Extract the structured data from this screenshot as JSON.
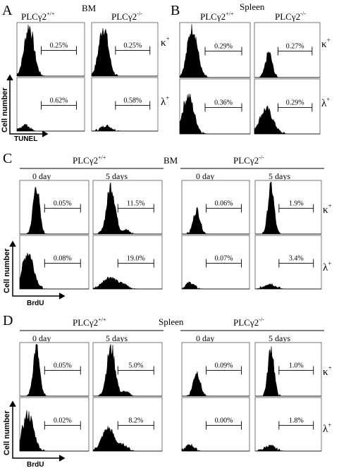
{
  "figure": {
    "A": {
      "letter": "A",
      "tissue": "BM",
      "genotypes": [
        "PLCγ2",
        "PLCγ2"
      ],
      "genotype_sup": [
        "+/+",
        "-/-"
      ],
      "rows": [
        {
          "chain": "κ",
          "chain_sup": "+",
          "gates": [
            "0.25%",
            "0.25%"
          ]
        },
        {
          "chain": "λ",
          "chain_sup": "+",
          "gates": [
            "0.62%",
            "0.58%"
          ]
        }
      ],
      "ylabel": "Cell number",
      "xlabel": "TUNEL"
    },
    "B": {
      "letter": "B",
      "tissue": "Spleen",
      "genotypes": [
        "PLCγ2",
        "PLCγ2"
      ],
      "genotype_sup": [
        "+/+",
        "-/-"
      ],
      "rows": [
        {
          "chain": "κ",
          "chain_sup": "+",
          "gates": [
            "0.29%",
            "0.27%"
          ]
        },
        {
          "chain": "λ",
          "chain_sup": "+",
          "gates": [
            "0.36%",
            "0.29%"
          ]
        }
      ]
    },
    "C": {
      "letter": "C",
      "tissue": "BM",
      "genotypes": [
        "PLCγ2",
        "PLCγ2"
      ],
      "genotype_sup": [
        "+/+",
        "-/-"
      ],
      "days": [
        "0 day",
        "5 days",
        "0 day",
        "5 days"
      ],
      "rows": [
        {
          "chain": "κ",
          "chain_sup": "+",
          "gates": [
            "0.05%",
            "11.5%",
            "0.06%",
            "1.9%"
          ]
        },
        {
          "chain": "λ",
          "chain_sup": "+",
          "gates": [
            "0.08%",
            "19.0%",
            "0.07%",
            "3.4%"
          ]
        }
      ],
      "ylabel": "Cell number",
      "xlabel": "BrdU"
    },
    "D": {
      "letter": "D",
      "tissue": "Spleen",
      "genotypes": [
        "PLCγ2",
        "PLCγ2"
      ],
      "genotype_sup": [
        "+/+",
        "-/-"
      ],
      "days": [
        "0 day",
        "5 days",
        "0 day",
        "5 days"
      ],
      "rows": [
        {
          "chain": "κ",
          "chain_sup": "+",
          "gates": [
            "0.05%",
            "5.0%",
            "0.09%",
            "1.0%"
          ]
        },
        {
          "chain": "λ",
          "chain_sup": "+",
          "gates": [
            "0.02%",
            "8.2%",
            "0.00%",
            "1.8%"
          ]
        }
      ],
      "ylabel": "Cell number",
      "xlabel": "BrdU"
    }
  }
}
